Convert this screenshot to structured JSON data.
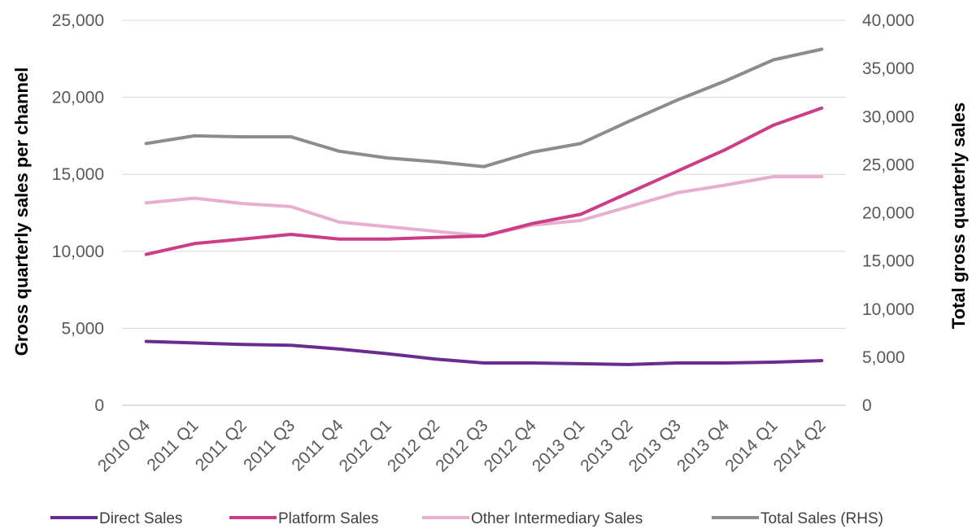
{
  "chart_data": {
    "type": "line",
    "title": "",
    "categories": [
      "2010 Q4",
      "2011 Q1",
      "2011 Q2",
      "2011 Q3",
      "2011 Q4",
      "2012 Q1",
      "2012 Q2",
      "2012 Q3",
      "2012 Q4",
      "2013 Q1",
      "2013 Q2",
      "2013 Q3",
      "2013 Q4",
      "2014 Q1",
      "2014 Q2"
    ],
    "ylabel": "Gross quarterly sales per channel",
    "y2label": "Total gross quarterly sales",
    "ylim": [
      0,
      25000
    ],
    "y2lim": [
      0,
      40000
    ],
    "yticks": [
      "0",
      "5,000",
      "10,000",
      "15,000",
      "20,000",
      "25,000"
    ],
    "y2ticks": [
      "0",
      "5,000",
      "10,000",
      "15,000",
      "20,000",
      "25,000",
      "30,000",
      "35,000",
      "40,000"
    ],
    "grid": true,
    "legend_position": "bottom",
    "series": [
      {
        "name": "Direct Sales",
        "axis": "left",
        "color": "#6a2c91",
        "values": [
          4150,
          4050,
          3950,
          3900,
          3650,
          3350,
          3000,
          2750,
          2750,
          2700,
          2650,
          2750,
          2750,
          2800,
          2900
        ]
      },
      {
        "name": "Platform Sales",
        "axis": "left",
        "color": "#cc3d87",
        "values": [
          9800,
          10500,
          10800,
          11100,
          10800,
          10800,
          10900,
          11000,
          11800,
          12400,
          13800,
          15200,
          16600,
          18200,
          19300
        ]
      },
      {
        "name": "Other Intermediary Sales",
        "axis": "left",
        "color": "#e8aed0",
        "values": [
          13150,
          13450,
          13100,
          12900,
          11900,
          11600,
          11300,
          11000,
          11700,
          12000,
          12900,
          13800,
          14300,
          14850,
          14850
        ]
      },
      {
        "name": "Total Sales (RHS)",
        "axis": "right",
        "color": "#8c8c8c",
        "values": [
          27200,
          28000,
          27900,
          27900,
          26400,
          25700,
          25300,
          24800,
          26300,
          27200,
          29500,
          31700,
          33700,
          35900,
          37000
        ]
      }
    ]
  }
}
